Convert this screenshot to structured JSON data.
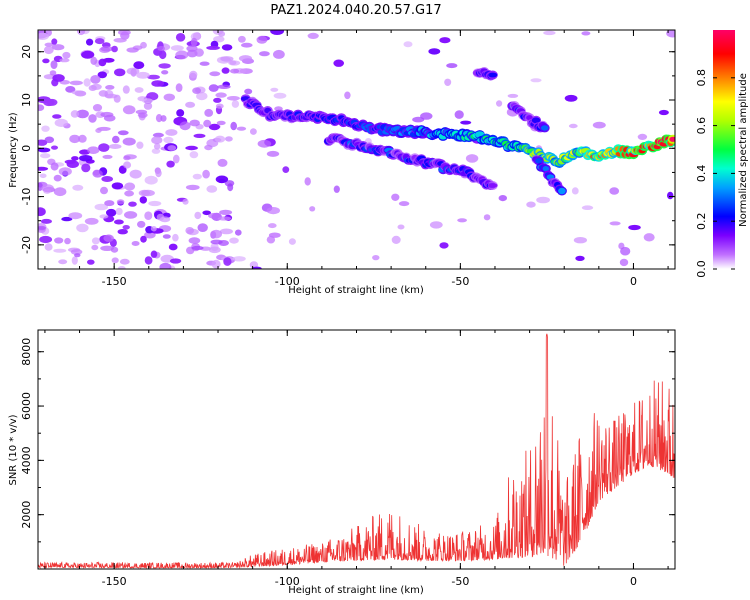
{
  "title": "PAZ1.2024.040.20.57.G17",
  "chart_data": [
    {
      "type": "heatmap",
      "xlabel": "Height of straight line (km)",
      "ylabel": "Frequency (Hz)",
      "xlim": [
        -172,
        12
      ],
      "ylim": [
        -25,
        24.5
      ],
      "xticks": [
        -150,
        -100,
        -50,
        0
      ],
      "yticks": [
        -20,
        -10,
        0,
        10,
        20
      ],
      "colorbar": {
        "label": "Normalized spectral amplitude",
        "range": [
          0,
          1
        ],
        "ticks": [
          "0.0",
          "0.2",
          "0.4",
          "0.6",
          "0.8"
        ],
        "colormap": "hsv",
        "colors": [
          "#ffffff",
          "#7b00ff",
          "#0000ff",
          "#00c0ff",
          "#00ff40",
          "#ffff00",
          "#ff8000",
          "#ff0000",
          "#ff0066"
        ]
      },
      "ridges": [
        {
          "points": [
            [
              -112,
              10
            ],
            [
              -105,
              7
            ],
            [
              -95,
              6.5
            ],
            [
              -85,
              6
            ],
            [
              -75,
              4
            ],
            [
              -65,
              3.5
            ],
            [
              -55,
              3
            ],
            [
              -45,
              2.5
            ],
            [
              -35,
              0.5
            ],
            [
              -28,
              -1
            ],
            [
              -22,
              -3
            ],
            [
              -15,
              -0.5
            ],
            [
              -10,
              -2
            ],
            [
              -5,
              -0.5
            ],
            [
              0,
              -1
            ],
            [
              5,
              0.5
            ],
            [
              12,
              2
            ]
          ],
          "peak": 0.9
        },
        {
          "points": [
            [
              -88,
              2
            ],
            [
              -75,
              0
            ],
            [
              -60,
              -3
            ],
            [
              -48,
              -5
            ],
            [
              -40,
              -8
            ]
          ],
          "peak": 0.3
        },
        {
          "points": [
            [
              -35,
              9
            ],
            [
              -30,
              6
            ],
            [
              -25,
              4
            ]
          ],
          "peak": 0.25
        },
        {
          "points": [
            [
              -45,
              15.5
            ],
            [
              -40,
              15
            ]
          ],
          "peak": 0.2
        },
        {
          "points": [
            [
              -28,
              -2
            ],
            [
              -24,
              -6
            ],
            [
              -20,
              -9
            ]
          ],
          "peak": 0.35
        }
      ]
    },
    {
      "type": "line",
      "xlabel": "Height of straight line (km)",
      "ylabel": "SNR (10 * v/v)",
      "xlim": [
        -172,
        12
      ],
      "ylim": [
        0,
        8800
      ],
      "xticks": [
        -150,
        -100,
        -50,
        0
      ],
      "yticks": [
        2000,
        4000,
        6000,
        8000
      ],
      "color": "#ee3333",
      "envelope": {
        "x": [
          -172,
          -140,
          -115,
          -110,
          -100,
          -90,
          -80,
          -70,
          -60,
          -50,
          -40,
          -35,
          -30,
          -25,
          -20,
          -15,
          -10,
          -5,
          0,
          5,
          10,
          12
        ],
        "base": [
          60,
          40,
          50,
          80,
          150,
          250,
          300,
          350,
          300,
          300,
          350,
          400,
          450,
          500,
          100,
          1000,
          2500,
          3000,
          3500,
          3800,
          3500,
          3200
        ],
        "peak": [
          250,
          250,
          250,
          550,
          800,
          1000,
          1600,
          2400,
          1500,
          1400,
          1800,
          4000,
          4500,
          8700,
          3000,
          5500,
          6000,
          5600,
          6200,
          7000,
          7100,
          6500
        ]
      }
    }
  ]
}
